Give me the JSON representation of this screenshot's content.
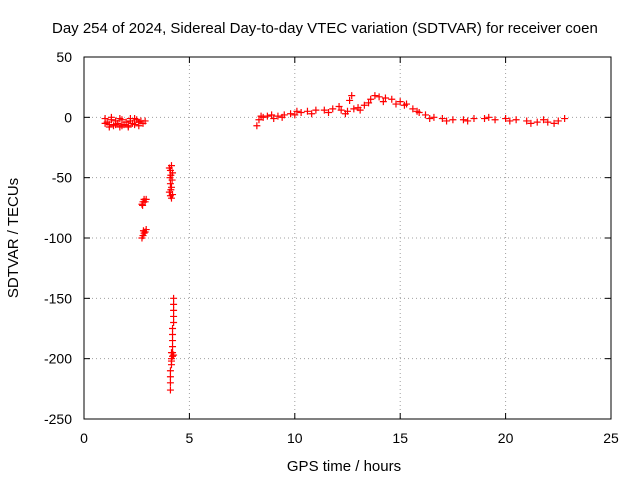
{
  "chart_data": {
    "type": "scatter",
    "title": "Day 254 of 2024, Sidereal Day-to-day VTEC variation (SDTVAR) for receiver coen",
    "xlabel": "GPS time / hours",
    "ylabel": "SDTVAR / TECUs",
    "xlim": [
      0,
      25
    ],
    "ylim": [
      -250,
      50
    ],
    "xticks": [
      0,
      5,
      10,
      15,
      20,
      25
    ],
    "yticks": [
      -250,
      -200,
      -150,
      -100,
      -50,
      0,
      50
    ],
    "grid": true,
    "marker": "+",
    "series": [
      {
        "name": "SDTVAR",
        "color": "#ff0000",
        "points": [
          [
            1.0,
            -1
          ],
          [
            1.1,
            -4
          ],
          [
            1.2,
            -6
          ],
          [
            1.3,
            -2
          ],
          [
            1.4,
            -7
          ],
          [
            1.5,
            -3
          ],
          [
            1.6,
            -5
          ],
          [
            1.7,
            -8
          ],
          [
            1.8,
            -2
          ],
          [
            1.9,
            -6
          ],
          [
            2.0,
            -4
          ],
          [
            2.1,
            -7
          ],
          [
            2.2,
            -3
          ],
          [
            2.3,
            -5
          ],
          [
            2.4,
            -6
          ],
          [
            2.5,
            -2
          ],
          [
            2.6,
            -4
          ],
          [
            2.7,
            -3
          ],
          [
            2.8,
            -5
          ],
          [
            2.9,
            -3
          ],
          [
            1.2,
            -8
          ],
          [
            1.5,
            -6
          ],
          [
            1.8,
            -7
          ],
          [
            2.1,
            -8
          ],
          [
            2.4,
            -1
          ],
          [
            1.3,
            0
          ],
          [
            1.7,
            -1
          ],
          [
            2.2,
            -1
          ],
          [
            2.6,
            -7
          ],
          [
            1.0,
            -5
          ],
          [
            2.75,
            -72
          ],
          [
            2.8,
            -70
          ],
          [
            2.85,
            -68
          ],
          [
            2.9,
            -70
          ],
          [
            2.95,
            -68
          ],
          [
            2.78,
            -73
          ],
          [
            2.75,
            -100
          ],
          [
            2.8,
            -98
          ],
          [
            2.85,
            -96
          ],
          [
            2.9,
            -95
          ],
          [
            2.95,
            -93
          ],
          [
            2.82,
            -94
          ],
          [
            4.05,
            -42
          ],
          [
            4.1,
            -44
          ],
          [
            4.15,
            -40
          ],
          [
            4.2,
            -46
          ],
          [
            4.12,
            -48
          ],
          [
            4.18,
            -52
          ],
          [
            4.1,
            -55
          ],
          [
            4.15,
            -58
          ],
          [
            4.05,
            -62
          ],
          [
            4.1,
            -65
          ],
          [
            4.15,
            -67
          ],
          [
            4.2,
            -64
          ],
          [
            4.12,
            -60
          ],
          [
            4.08,
            -50
          ],
          [
            4.25,
            -150
          ],
          [
            4.25,
            -155
          ],
          [
            4.25,
            -160
          ],
          [
            4.25,
            -165
          ],
          [
            4.25,
            -170
          ],
          [
            4.2,
            -175
          ],
          [
            4.2,
            -180
          ],
          [
            4.2,
            -185
          ],
          [
            4.2,
            -190
          ],
          [
            4.15,
            -195
          ],
          [
            4.2,
            -195
          ],
          [
            4.25,
            -197
          ],
          [
            4.15,
            -200
          ],
          [
            4.15,
            -205
          ],
          [
            4.1,
            -210
          ],
          [
            4.1,
            -215
          ],
          [
            4.1,
            -220
          ],
          [
            4.1,
            -226
          ],
          [
            4.2,
            -198
          ],
          [
            4.15,
            -202
          ],
          [
            8.2,
            -7
          ],
          [
            8.3,
            -2
          ],
          [
            8.5,
            0
          ],
          [
            8.7,
            1
          ],
          [
            9.0,
            -1
          ],
          [
            9.2,
            1
          ],
          [
            9.5,
            2
          ],
          [
            9.8,
            3
          ],
          [
            10.0,
            2
          ],
          [
            10.3,
            4
          ],
          [
            10.6,
            5
          ],
          [
            11.0,
            6
          ],
          [
            11.4,
            6
          ],
          [
            11.8,
            7
          ],
          [
            12.2,
            6
          ],
          [
            12.5,
            5
          ],
          [
            12.8,
            7
          ],
          [
            13.0,
            8
          ],
          [
            13.3,
            10
          ],
          [
            13.6,
            15
          ],
          [
            13.8,
            18
          ],
          [
            14.0,
            17
          ],
          [
            14.3,
            16
          ],
          [
            14.6,
            15
          ],
          [
            15.0,
            13
          ],
          [
            15.3,
            11
          ],
          [
            15.6,
            7
          ],
          [
            15.9,
            4
          ],
          [
            16.2,
            2
          ],
          [
            16.6,
            0
          ],
          [
            17.0,
            -1
          ],
          [
            17.5,
            -2
          ],
          [
            18.0,
            -2
          ],
          [
            18.5,
            -1
          ],
          [
            19.0,
            -1
          ],
          [
            19.5,
            -2
          ],
          [
            20.0,
            -1
          ],
          [
            20.5,
            -2
          ],
          [
            21.0,
            -3
          ],
          [
            21.5,
            -4
          ],
          [
            22.0,
            -4
          ],
          [
            22.5,
            -3
          ],
          [
            22.8,
            -1
          ],
          [
            8.4,
            1
          ],
          [
            8.9,
            2
          ],
          [
            9.4,
            0
          ],
          [
            10.1,
            5
          ],
          [
            10.8,
            3
          ],
          [
            11.6,
            4
          ],
          [
            12.1,
            9
          ],
          [
            12.4,
            3
          ],
          [
            12.6,
            14
          ],
          [
            12.7,
            18
          ],
          [
            13.1,
            6
          ],
          [
            13.5,
            12
          ],
          [
            14.2,
            13
          ],
          [
            14.8,
            11
          ],
          [
            15.2,
            10
          ],
          [
            15.8,
            5
          ],
          [
            16.4,
            -1
          ],
          [
            17.2,
            -3
          ],
          [
            18.2,
            -3
          ],
          [
            19.2,
            0
          ],
          [
            20.2,
            -3
          ],
          [
            21.2,
            -5
          ],
          [
            21.8,
            -2
          ],
          [
            22.3,
            -5
          ]
        ]
      }
    ]
  }
}
